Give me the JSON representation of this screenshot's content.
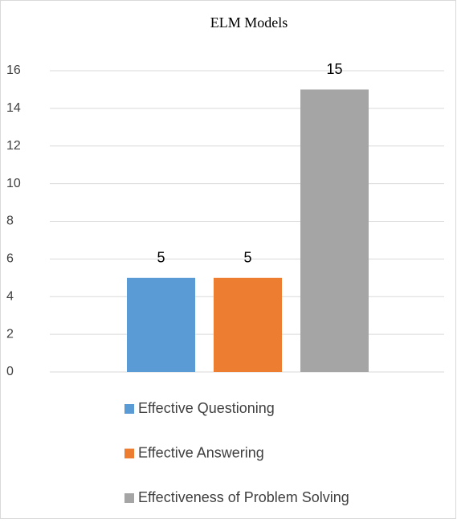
{
  "chart_data": {
    "type": "bar",
    "title": "ELM Models",
    "categories": [
      null
    ],
    "series": [
      {
        "name": "Effective Questioning",
        "color": "#5b9bd5",
        "values": [
          5
        ]
      },
      {
        "name": "Effective Answering",
        "color": "#ed7d31",
        "values": [
          5
        ]
      },
      {
        "name": "Effectiveness of Problem Solving",
        "color": "#a5a5a5",
        "values": [
          15
        ]
      }
    ],
    "ylim": [
      0,
      16
    ],
    "yticks": [
      0,
      2,
      4,
      6,
      8,
      10,
      12,
      14,
      16
    ],
    "grid": true,
    "legend": "bottom"
  }
}
